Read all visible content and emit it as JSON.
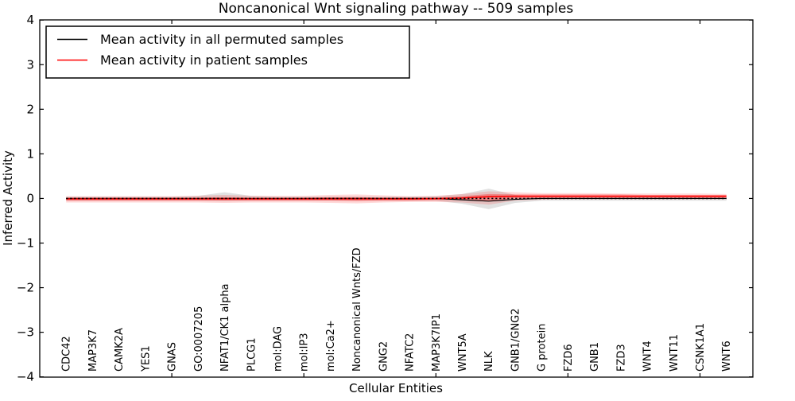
{
  "chart_data": {
    "type": "line",
    "title": "Noncanonical Wnt signaling pathway -- 509 samples",
    "xlabel": "Cellular Entities",
    "ylabel": "Inferred Activity",
    "ylim": [
      -4,
      4
    ],
    "yticks": [
      -4,
      -3,
      -2,
      -1,
      0,
      1,
      2,
      3,
      4
    ],
    "grid": false,
    "background_color": "#ffffff",
    "frame_color": "#000000",
    "legend": {
      "position": "upper left",
      "entries": [
        {
          "label": "Mean activity in all permuted samples",
          "color": "#000000",
          "style": "solid"
        },
        {
          "label": "Mean activity in patient samples",
          "color": "#ff0000",
          "style": "solid"
        }
      ]
    },
    "categories": [
      "CDC42",
      "MAP3K7",
      "CAMK2A",
      "YES1",
      "GNAS",
      "GO:0007205",
      "NFAT1/CK1 alpha",
      "PLCG1",
      "mol:DAG",
      "mol:IP3",
      "mol:Ca2+",
      "Noncanonical Wnts/FZD",
      "GNG2",
      "NFATC2",
      "MAP3K7IP1",
      "WNT5A",
      "NLK",
      "GNB1/GNG2",
      "G protein",
      "FZD6",
      "GNB1",
      "FZD3",
      "WNT4",
      "WNT11",
      "CSNK1A1",
      "WNT6"
    ],
    "series": [
      {
        "name": "Mean activity in all permuted samples",
        "color": "#000000",
        "style": "solid",
        "width": 1.2,
        "values": [
          0,
          0,
          0,
          0,
          0,
          0,
          0,
          0,
          0,
          0,
          0,
          0,
          0,
          0,
          0,
          -0.03,
          -0.06,
          -0.02,
          0,
          0,
          0,
          0,
          0,
          0,
          0,
          0
        ]
      },
      {
        "name": "Mean activity in patient samples",
        "color": "#ff0000",
        "style": "solid",
        "width": 1.6,
        "values": [
          -0.01,
          -0.01,
          -0.01,
          -0.01,
          -0.01,
          -0.01,
          -0.01,
          -0.01,
          -0.01,
          -0.01,
          -0.01,
          -0.01,
          -0.01,
          -0.01,
          -0.005,
          0.01,
          0.04,
          0.05,
          0.05,
          0.05,
          0.05,
          0.05,
          0.05,
          0.05,
          0.05,
          0.05
        ]
      },
      {
        "name": "zero-reference",
        "color": "#000000",
        "style": "dotted",
        "width": 1.6,
        "values": [
          0,
          0,
          0,
          0,
          0,
          0,
          0,
          0,
          0,
          0,
          0,
          0,
          0,
          0,
          0,
          0,
          0,
          0,
          0,
          0,
          0,
          0,
          0,
          0,
          0,
          0
        ]
      }
    ],
    "bands": [
      {
        "name": "permuted-samples-std-band",
        "color": "#888888",
        "opacity": 0.25,
        "upper": [
          0.04,
          0.04,
          0.04,
          0.04,
          0.04,
          0.06,
          0.14,
          0.06,
          0.04,
          0.04,
          0.04,
          0.04,
          0.04,
          0.04,
          0.05,
          0.1,
          0.22,
          0.08,
          0.04,
          0.04,
          0.04,
          0.04,
          0.04,
          0.04,
          0.04,
          0.04
        ],
        "lower": [
          -0.05,
          -0.05,
          -0.05,
          -0.05,
          -0.05,
          -0.05,
          -0.06,
          -0.05,
          -0.05,
          -0.05,
          -0.05,
          -0.05,
          -0.05,
          -0.05,
          -0.05,
          -0.12,
          -0.24,
          -0.1,
          -0.05,
          -0.05,
          -0.05,
          -0.05,
          -0.05,
          -0.05,
          -0.05,
          -0.05
        ]
      },
      {
        "name": "patient-samples-std-band-outer",
        "color": "#ff0000",
        "opacity": 0.15,
        "upper": [
          0.05,
          0.05,
          0.05,
          0.05,
          0.05,
          0.06,
          0.08,
          0.06,
          0.06,
          0.06,
          0.08,
          0.09,
          0.07,
          0.05,
          0.06,
          0.1,
          0.16,
          0.14,
          0.12,
          0.12,
          0.12,
          0.11,
          0.11,
          0.11,
          0.11,
          0.1
        ],
        "lower": [
          -0.09,
          -0.09,
          -0.09,
          -0.09,
          -0.09,
          -0.09,
          -0.1,
          -0.09,
          -0.09,
          -0.09,
          -0.1,
          -0.11,
          -0.09,
          -0.08,
          -0.08,
          -0.09,
          -0.14,
          -0.05,
          -0.03,
          -0.02,
          -0.02,
          -0.02,
          -0.02,
          -0.02,
          -0.02,
          -0.02
        ]
      },
      {
        "name": "patient-samples-std-band-inner",
        "color": "#ff0000",
        "opacity": 0.3,
        "upper": [
          0.02,
          0.02,
          0.02,
          0.02,
          0.02,
          0.02,
          0.03,
          0.02,
          0.02,
          0.02,
          0.03,
          0.03,
          0.02,
          0.02,
          0.02,
          0.05,
          0.1,
          0.09,
          0.09,
          0.09,
          0.09,
          0.09,
          0.08,
          0.08,
          0.08,
          0.08
        ],
        "lower": [
          -0.05,
          -0.05,
          -0.05,
          -0.05,
          -0.05,
          -0.05,
          -0.05,
          -0.05,
          -0.05,
          -0.05,
          -0.05,
          -0.06,
          -0.05,
          -0.05,
          -0.04,
          -0.03,
          -0.06,
          0.0,
          0.01,
          0.01,
          0.01,
          0.01,
          0.01,
          0.01,
          0.01,
          0.01
        ]
      }
    ]
  }
}
